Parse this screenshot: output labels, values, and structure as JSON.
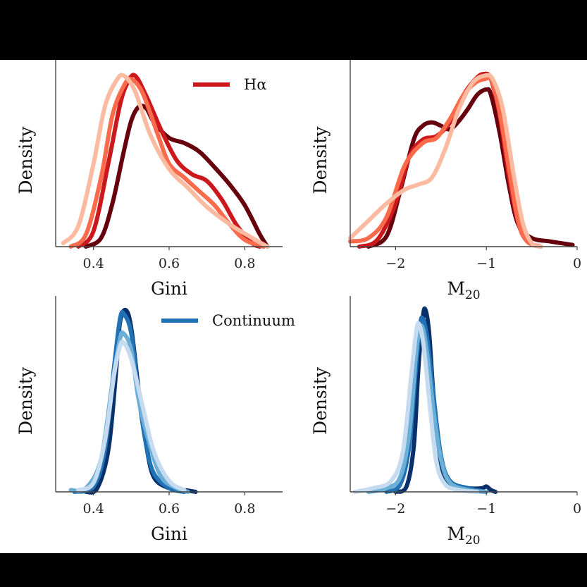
{
  "chart_data": [
    {
      "type": "line",
      "panel": "top-left",
      "xlabel": "Gini",
      "ylabel": "Density",
      "xlim": [
        0.3,
        0.9
      ],
      "xticks": [
        {
          "v": 0.4,
          "label": "0.4"
        },
        {
          "v": 0.6,
          "label": "0.6"
        },
        {
          "v": 0.8,
          "label": "0.8"
        }
      ],
      "ylim": [
        0,
        1.0
      ],
      "legend": {
        "label": "Hα",
        "color": "#cb181d",
        "position": "top-right"
      },
      "series": [
        {
          "color": "#67000d",
          "points": [
            [
              0.38,
              0.0
            ],
            [
              0.42,
              0.05
            ],
            [
              0.45,
              0.25
            ],
            [
              0.48,
              0.55
            ],
            [
              0.5,
              0.73
            ],
            [
              0.52,
              0.81
            ],
            [
              0.54,
              0.8
            ],
            [
              0.56,
              0.72
            ],
            [
              0.6,
              0.63
            ],
            [
              0.64,
              0.6
            ],
            [
              0.68,
              0.55
            ],
            [
              0.72,
              0.46
            ],
            [
              0.76,
              0.36
            ],
            [
              0.8,
              0.24
            ],
            [
              0.84,
              0.07
            ],
            [
              0.86,
              0.0
            ]
          ]
        },
        {
          "color": "#cb181d",
          "points": [
            [
              0.36,
              0.0
            ],
            [
              0.4,
              0.09
            ],
            [
              0.44,
              0.49
            ],
            [
              0.47,
              0.82
            ],
            [
              0.49,
              0.95
            ],
            [
              0.51,
              0.99
            ],
            [
              0.54,
              0.87
            ],
            [
              0.58,
              0.67
            ],
            [
              0.62,
              0.5
            ],
            [
              0.66,
              0.42
            ],
            [
              0.7,
              0.38
            ],
            [
              0.74,
              0.27
            ],
            [
              0.78,
              0.12
            ],
            [
              0.82,
              0.02
            ],
            [
              0.84,
              0.0
            ]
          ]
        },
        {
          "color": "#fb6a4a",
          "points": [
            [
              0.34,
              0.0
            ],
            [
              0.38,
              0.07
            ],
            [
              0.42,
              0.4
            ],
            [
              0.45,
              0.76
            ],
            [
              0.48,
              0.93
            ],
            [
              0.5,
              0.97
            ],
            [
              0.53,
              0.89
            ],
            [
              0.57,
              0.65
            ],
            [
              0.6,
              0.48
            ],
            [
              0.64,
              0.4
            ],
            [
              0.68,
              0.32
            ],
            [
              0.72,
              0.24
            ],
            [
              0.76,
              0.13
            ],
            [
              0.8,
              0.04
            ],
            [
              0.85,
              0.0
            ]
          ]
        },
        {
          "color": "#fcbba1",
          "points": [
            [
              0.32,
              0.02
            ],
            [
              0.36,
              0.12
            ],
            [
              0.4,
              0.48
            ],
            [
              0.43,
              0.81
            ],
            [
              0.46,
              0.96
            ],
            [
              0.48,
              0.99
            ],
            [
              0.51,
              0.9
            ],
            [
              0.55,
              0.65
            ],
            [
              0.6,
              0.45
            ],
            [
              0.65,
              0.34
            ],
            [
              0.7,
              0.23
            ],
            [
              0.76,
              0.13
            ],
            [
              0.82,
              0.05
            ],
            [
              0.86,
              0.0
            ]
          ]
        }
      ]
    },
    {
      "type": "line",
      "panel": "top-right",
      "xlabel": "M20",
      "ylabel": "Density",
      "xlim": [
        -2.5,
        0
      ],
      "xticks": [
        {
          "v": -2,
          "label": "−2"
        },
        {
          "v": -1,
          "label": "−1"
        },
        {
          "v": 0,
          "label": "0"
        }
      ],
      "ylim": [
        0,
        1.0
      ],
      "series": [
        {
          "color": "#67000d",
          "points": [
            [
              -2.3,
              0.0
            ],
            [
              -2.1,
              0.06
            ],
            [
              -1.95,
              0.32
            ],
            [
              -1.8,
              0.62
            ],
            [
              -1.7,
              0.7
            ],
            [
              -1.6,
              0.72
            ],
            [
              -1.5,
              0.7
            ],
            [
              -1.4,
              0.68
            ],
            [
              -1.3,
              0.73
            ],
            [
              -1.2,
              0.8
            ],
            [
              -1.1,
              0.88
            ],
            [
              -1.0,
              0.91
            ],
            [
              -0.95,
              0.88
            ],
            [
              -0.85,
              0.65
            ],
            [
              -0.75,
              0.35
            ],
            [
              -0.65,
              0.13
            ],
            [
              -0.5,
              0.05
            ],
            [
              -0.3,
              0.03
            ],
            [
              -0.05,
              0.01
            ]
          ]
        },
        {
          "color": "#cb181d",
          "points": [
            [
              -2.4,
              0.0
            ],
            [
              -2.2,
              0.04
            ],
            [
              -2.0,
              0.25
            ],
            [
              -1.85,
              0.52
            ],
            [
              -1.7,
              0.62
            ],
            [
              -1.55,
              0.64
            ],
            [
              -1.4,
              0.72
            ],
            [
              -1.25,
              0.88
            ],
            [
              -1.12,
              0.97
            ],
            [
              -1.03,
              1.0
            ],
            [
              -0.95,
              0.97
            ],
            [
              -0.85,
              0.75
            ],
            [
              -0.75,
              0.4
            ],
            [
              -0.65,
              0.14
            ],
            [
              -0.55,
              0.03
            ],
            [
              -0.4,
              0.0
            ]
          ]
        },
        {
          "color": "#fb6a4a",
          "points": [
            [
              -2.5,
              0.03
            ],
            [
              -2.3,
              0.05
            ],
            [
              -2.1,
              0.17
            ],
            [
              -1.9,
              0.47
            ],
            [
              -1.7,
              0.6
            ],
            [
              -1.55,
              0.63
            ],
            [
              -1.4,
              0.74
            ],
            [
              -1.25,
              0.88
            ],
            [
              -1.12,
              0.95
            ],
            [
              -1.02,
              0.97
            ],
            [
              -0.94,
              0.96
            ],
            [
              -0.85,
              0.77
            ],
            [
              -0.75,
              0.45
            ],
            [
              -0.65,
              0.15
            ],
            [
              -0.55,
              0.03
            ],
            [
              -0.4,
              0.0
            ]
          ]
        },
        {
          "color": "#fcbba1",
          "points": [
            [
              -2.5,
              0.05
            ],
            [
              -2.3,
              0.15
            ],
            [
              -2.1,
              0.25
            ],
            [
              -1.9,
              0.33
            ],
            [
              -1.75,
              0.36
            ],
            [
              -1.6,
              0.4
            ],
            [
              -1.45,
              0.57
            ],
            [
              -1.3,
              0.8
            ],
            [
              -1.15,
              0.95
            ],
            [
              -1.02,
              0.99
            ],
            [
              -0.93,
              0.97
            ],
            [
              -0.82,
              0.8
            ],
            [
              -0.7,
              0.42
            ],
            [
              -0.6,
              0.14
            ],
            [
              -0.5,
              0.02
            ],
            [
              -0.4,
              0.0
            ]
          ]
        }
      ]
    },
    {
      "type": "line",
      "panel": "bottom-left",
      "xlabel": "Gini",
      "ylabel": "Density",
      "xlim": [
        0.3,
        0.9
      ],
      "xticks": [
        {
          "v": 0.4,
          "label": "0.4"
        },
        {
          "v": 0.6,
          "label": "0.6"
        },
        {
          "v": 0.8,
          "label": "0.8"
        }
      ],
      "ylim": [
        0,
        1.0
      ],
      "legend": {
        "label": "Continuum",
        "color": "#2171b5",
        "position": "top-right"
      },
      "series": [
        {
          "color": "#08306b",
          "points": [
            [
              0.38,
              0.0
            ],
            [
              0.41,
              0.02
            ],
            [
              0.44,
              0.24
            ],
            [
              0.46,
              0.67
            ],
            [
              0.47,
              0.93
            ],
            [
              0.485,
              1.0
            ],
            [
              0.5,
              0.9
            ],
            [
              0.52,
              0.55
            ],
            [
              0.54,
              0.25
            ],
            [
              0.56,
              0.08
            ],
            [
              0.6,
              0.02
            ],
            [
              0.64,
              0.01
            ],
            [
              0.67,
              0.0
            ]
          ]
        },
        {
          "color": "#2171b5",
          "points": [
            [
              0.35,
              0.0
            ],
            [
              0.4,
              0.03
            ],
            [
              0.43,
              0.23
            ],
            [
              0.455,
              0.7
            ],
            [
              0.47,
              0.95
            ],
            [
              0.48,
              0.98
            ],
            [
              0.5,
              0.87
            ],
            [
              0.52,
              0.52
            ],
            [
              0.54,
              0.25
            ],
            [
              0.56,
              0.1
            ],
            [
              0.6,
              0.02
            ],
            [
              0.64,
              0.0
            ]
          ]
        },
        {
          "color": "#6baed6",
          "points": [
            [
              0.34,
              0.01
            ],
            [
              0.38,
              0.02
            ],
            [
              0.42,
              0.18
            ],
            [
              0.45,
              0.6
            ],
            [
              0.47,
              0.84
            ],
            [
              0.48,
              0.87
            ],
            [
              0.5,
              0.78
            ],
            [
              0.52,
              0.5
            ],
            [
              0.55,
              0.25
            ],
            [
              0.58,
              0.08
            ],
            [
              0.62,
              0.02
            ],
            [
              0.65,
              0.0
            ]
          ]
        },
        {
          "color": "#c6dbef",
          "points": [
            [
              0.36,
              0.01
            ],
            [
              0.4,
              0.05
            ],
            [
              0.43,
              0.28
            ],
            [
              0.455,
              0.65
            ],
            [
              0.47,
              0.8
            ],
            [
              0.48,
              0.82
            ],
            [
              0.5,
              0.73
            ],
            [
              0.53,
              0.47
            ],
            [
              0.56,
              0.22
            ],
            [
              0.6,
              0.06
            ],
            [
              0.64,
              0.01
            ]
          ]
        }
      ]
    },
    {
      "type": "line",
      "panel": "bottom-right",
      "xlabel": "M20",
      "ylabel": "Density",
      "xlim": [
        -2.5,
        0
      ],
      "xticks": [
        {
          "v": -2,
          "label": "−2"
        },
        {
          "v": -1,
          "label": "−1"
        },
        {
          "v": 0,
          "label": "0"
        }
      ],
      "ylim": [
        0,
        1.0
      ],
      "series": [
        {
          "color": "#08306b",
          "points": [
            [
              -2.0,
              0.0
            ],
            [
              -1.88,
              0.03
            ],
            [
              -1.8,
              0.25
            ],
            [
              -1.75,
              0.67
            ],
            [
              -1.7,
              0.96
            ],
            [
              -1.67,
              1.0
            ],
            [
              -1.63,
              0.87
            ],
            [
              -1.58,
              0.52
            ],
            [
              -1.5,
              0.16
            ],
            [
              -1.4,
              0.04
            ],
            [
              -1.2,
              0.02
            ],
            [
              -1.05,
              0.02
            ],
            [
              -1.0,
              0.03
            ],
            [
              -0.95,
              0.01
            ],
            [
              -0.9,
              0.0
            ]
          ]
        },
        {
          "color": "#2171b5",
          "points": [
            [
              -2.1,
              0.0
            ],
            [
              -1.95,
              0.04
            ],
            [
              -1.85,
              0.25
            ],
            [
              -1.78,
              0.66
            ],
            [
              -1.73,
              0.92
            ],
            [
              -1.7,
              0.95
            ],
            [
              -1.65,
              0.84
            ],
            [
              -1.58,
              0.52
            ],
            [
              -1.5,
              0.2
            ],
            [
              -1.4,
              0.06
            ],
            [
              -1.2,
              0.02
            ],
            [
              -1.0,
              0.0
            ]
          ]
        },
        {
          "color": "#6baed6",
          "points": [
            [
              -2.3,
              0.0
            ],
            [
              -2.1,
              0.02
            ],
            [
              -1.95,
              0.08
            ],
            [
              -1.85,
              0.32
            ],
            [
              -1.78,
              0.73
            ],
            [
              -1.74,
              0.89
            ],
            [
              -1.7,
              0.9
            ],
            [
              -1.65,
              0.75
            ],
            [
              -1.58,
              0.44
            ],
            [
              -1.5,
              0.18
            ],
            [
              -1.4,
              0.05
            ],
            [
              -1.2,
              0.01
            ],
            [
              -1.0,
              0.0
            ]
          ]
        },
        {
          "color": "#c6dbef",
          "points": [
            [
              -2.45,
              0.0
            ],
            [
              -2.25,
              0.02
            ],
            [
              -2.05,
              0.06
            ],
            [
              -1.92,
              0.22
            ],
            [
              -1.82,
              0.68
            ],
            [
              -1.77,
              0.89
            ],
            [
              -1.74,
              0.92
            ],
            [
              -1.69,
              0.8
            ],
            [
              -1.62,
              0.46
            ],
            [
              -1.55,
              0.16
            ],
            [
              -1.45,
              0.04
            ],
            [
              -1.3,
              0.01
            ],
            [
              -1.1,
              0.0
            ]
          ]
        }
      ]
    }
  ]
}
